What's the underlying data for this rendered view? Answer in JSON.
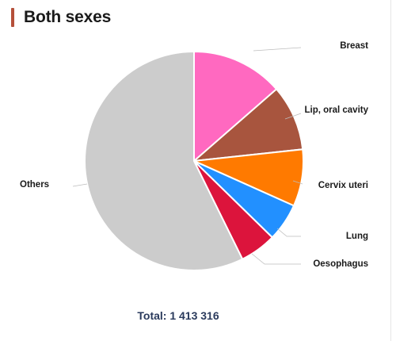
{
  "header": {
    "title": "Both sexes",
    "accent_color": "#b5503a"
  },
  "chart_data": {
    "type": "pie",
    "title": "Both sexes",
    "start_angle_deg": 0,
    "direction": "clockwise",
    "slices": [
      {
        "label": "Breast",
        "value": 13.6,
        "color": "#ff69c0"
      },
      {
        "label": "Lip, oral cavity",
        "value": 9.7,
        "color": "#a8553e"
      },
      {
        "label": "Cervix uteri",
        "value": 8.4,
        "color": "#ff7a00"
      },
      {
        "label": "Lung",
        "value": 5.6,
        "color": "#2290ff"
      },
      {
        "label": "Oesophagus",
        "value": 5.4,
        "color": "#dc143c"
      },
      {
        "label": "Others",
        "value": 57.3,
        "color": "#cccccc"
      }
    ],
    "legend": "none",
    "label_style": "outside-with-leader-lines"
  },
  "footer": {
    "total_text": "Total: 1 413 316"
  }
}
